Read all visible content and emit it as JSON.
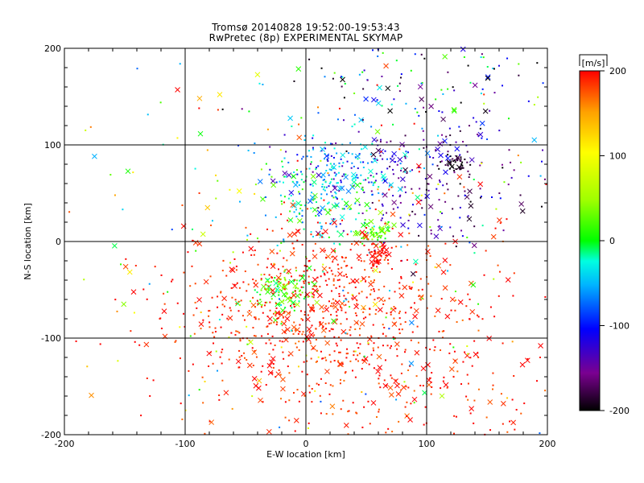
{
  "header": {
    "title": "Tromsø 20140828 19:52:00-19:53:43",
    "subtitle": "RwPretec (8p) EXPERIMENTAL SKYMAP"
  },
  "chart_data": {
    "type": "scatter",
    "title": "Tromsø 20140828 19:52:00-19:53:43",
    "subtitle": "RwPretec (8p) EXPERIMENTAL SKYMAP",
    "xlabel": "E-W location [km]",
    "ylabel": "N-S location [km]",
    "xlim": [
      -200,
      200
    ],
    "ylim": [
      -200,
      200
    ],
    "xticks": [
      "-200",
      "-100",
      "0",
      "100",
      "200"
    ],
    "yticks": [
      "-200",
      "-100",
      "0",
      "100",
      "200"
    ],
    "grid": true,
    "markers": [
      "dot",
      "x"
    ],
    "colorbar": {
      "label": "[m/s]",
      "range": [
        -200,
        200
      ],
      "ticks": [
        "200",
        "100",
        "0",
        "-100",
        "-200"
      ],
      "colormap": [
        "#000000",
        "#7a0090",
        "#0000ff",
        "#00b4ff",
        "#00ffe0",
        "#00ff00",
        "#a0ff00",
        "#ffff00",
        "#ffa000",
        "#ff0000"
      ]
    },
    "clusters": [
      {
        "x": 125,
        "y": 80,
        "sx": 6,
        "sy": 5,
        "count": 40,
        "velocity": -190,
        "spread": 20
      },
      {
        "x": 110,
        "y": 60,
        "sx": 40,
        "sy": 35,
        "count": 200,
        "velocity": -150,
        "spread": 50
      },
      {
        "x": 30,
        "y": 75,
        "sx": 30,
        "sy": 20,
        "count": 180,
        "velocity": -80,
        "spread": 70
      },
      {
        "x": 10,
        "y": 40,
        "sx": 25,
        "sy": 25,
        "count": 150,
        "velocity": -20,
        "spread": 60
      },
      {
        "x": 60,
        "y": 10,
        "sx": 8,
        "sy": 6,
        "count": 50,
        "velocity": 20,
        "spread": 30
      },
      {
        "x": 58,
        "y": -12,
        "sx": 6,
        "sy": 6,
        "count": 45,
        "velocity": 195,
        "spread": 10
      },
      {
        "x": -20,
        "y": -50,
        "sx": 15,
        "sy": 10,
        "count": 110,
        "velocity": 20,
        "spread": 40
      },
      {
        "x": 10,
        "y": -60,
        "sx": 60,
        "sy": 40,
        "count": 650,
        "velocity": 190,
        "spread": 20
      },
      {
        "x": 60,
        "y": -140,
        "sx": 90,
        "sy": 40,
        "count": 330,
        "velocity": 190,
        "spread": 25
      },
      {
        "x": 90,
        "y": 160,
        "sx": 60,
        "sy": 25,
        "count": 120,
        "velocity": -100,
        "spread": 130
      },
      {
        "x": 0,
        "y": 0,
        "sx": 130,
        "sy": 130,
        "count": 320,
        "velocity": 60,
        "spread": 150
      }
    ]
  }
}
